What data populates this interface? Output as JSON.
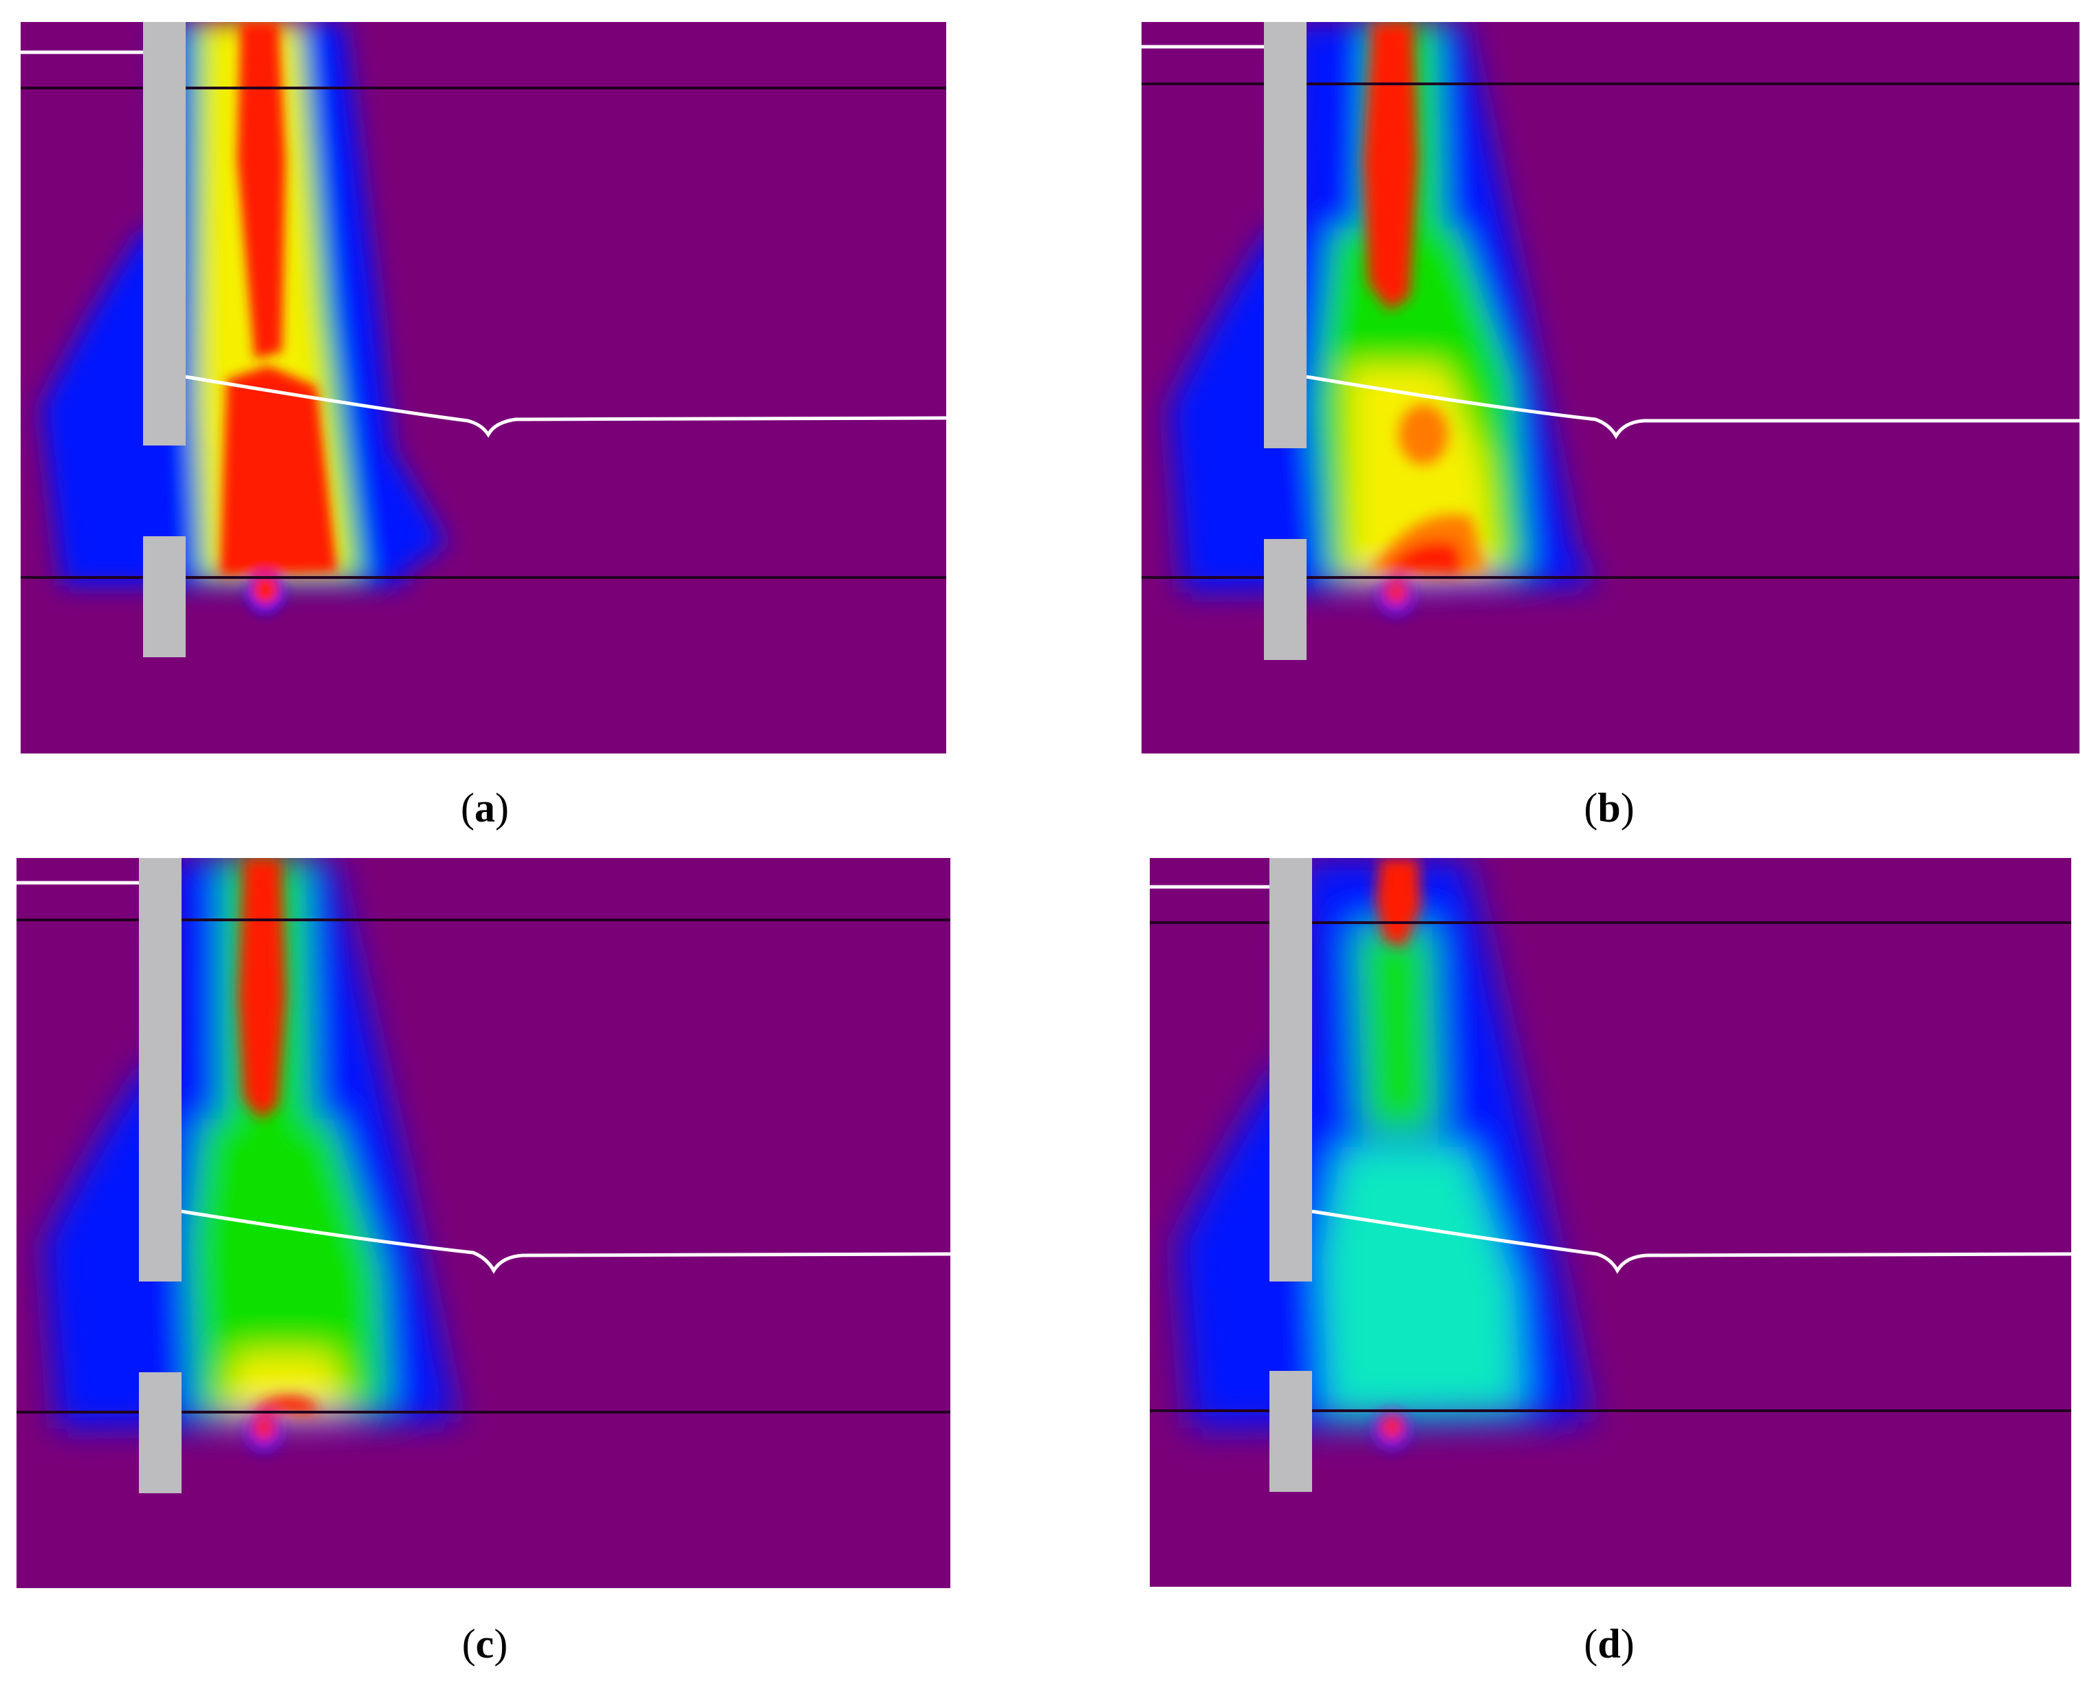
{
  "background_color": "#7a0078",
  "colors": {
    "red": "#ff1a00",
    "orange": "#ff7a00",
    "yellow": "#f5f000",
    "green": "#10e000",
    "cyan": "#10e8c0",
    "blue": "#0018ff",
    "grey": "#bdbcbe",
    "white": "#ffffff",
    "dark_line": "#200020"
  },
  "panels": [
    {
      "id": "a",
      "label": "a"
    },
    {
      "id": "b",
      "label": "b"
    },
    {
      "id": "c",
      "label": "c"
    },
    {
      "id": "d",
      "label": "d"
    }
  ]
}
